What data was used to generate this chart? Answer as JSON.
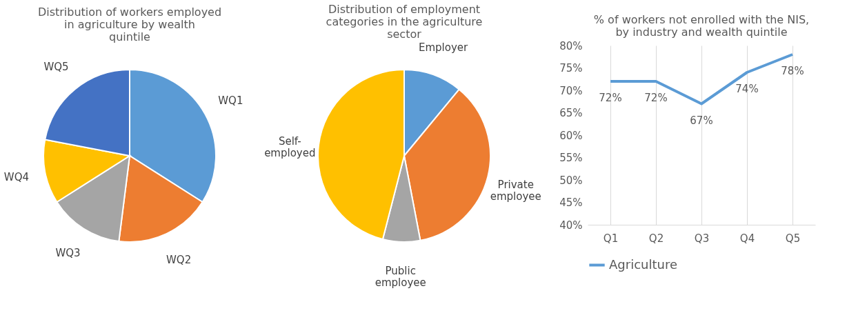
{
  "chart_data": [
    {
      "type": "pie",
      "title": "Distribution of workers employed in agriculture by wealth quintile",
      "categories": [
        "WQ1",
        "WQ2",
        "WQ3",
        "WQ4",
        "WQ5"
      ],
      "values": [
        34,
        18,
        14,
        12,
        22
      ],
      "colors": [
        "#5b9bd5",
        "#ed7d31",
        "#a5a5a5",
        "#ffc000",
        "#4472c4"
      ]
    },
    {
      "type": "pie",
      "title": "Distribution of employment categories in the agriculture sector",
      "categories": [
        "Employer",
        "Private employee",
        "Public employee",
        "Self-employed"
      ],
      "values": [
        11,
        36,
        7,
        46
      ],
      "colors": [
        "#5b9bd5",
        "#ed7d31",
        "#a5a5a5",
        "#ffc000"
      ]
    },
    {
      "type": "line",
      "title": "% of workers not enrolled with the NIS, by industry and wealth quintile",
      "categories": [
        "Q1",
        "Q2",
        "Q3",
        "Q4",
        "Q5"
      ],
      "series": [
        {
          "name": "Agriculture",
          "color": "#5b9bd5",
          "values": [
            72,
            72,
            67,
            74,
            78
          ],
          "value_labels": [
            "72%",
            "72%",
            "67%",
            "74%",
            "78%"
          ]
        }
      ],
      "ylim": [
        40,
        80
      ],
      "yticks": [
        {
          "value": 40,
          "label": "40%"
        },
        {
          "value": 45,
          "label": "45%"
        },
        {
          "value": 50,
          "label": "50%"
        },
        {
          "value": 55,
          "label": "55%"
        },
        {
          "value": 60,
          "label": "60%"
        },
        {
          "value": 65,
          "label": "65%"
        },
        {
          "value": 70,
          "label": "70%"
        },
        {
          "value": 75,
          "label": "75%"
        },
        {
          "value": 80,
          "label": "80%"
        }
      ],
      "grid": "x",
      "legend": "bottom",
      "marker": "none",
      "line_style": "solid"
    }
  ]
}
